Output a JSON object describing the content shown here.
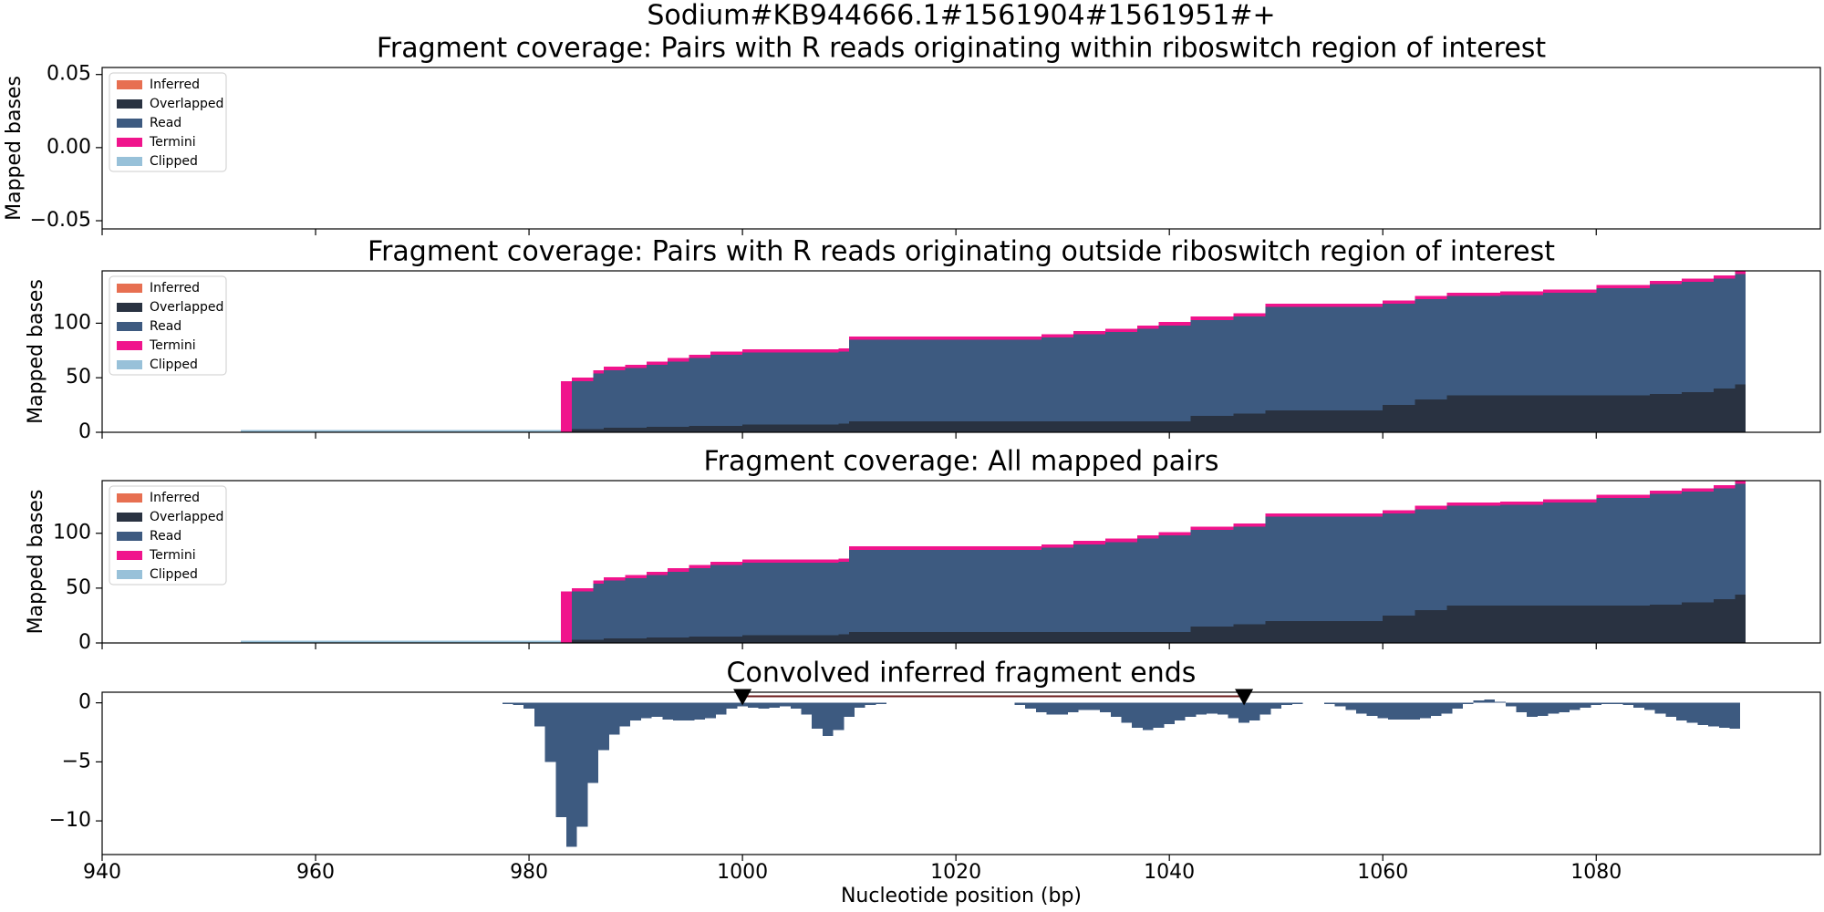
{
  "title": "Sodium#KB944666.1#1561904#1561951#+",
  "chart_data": [
    {
      "type": "stacked_step",
      "title": "Fragment coverage: Pairs with R reads originating within riboswitch region of interest",
      "ylabel": "Mapped bases",
      "legend": "upper left",
      "xlim": [
        940,
        1101
      ],
      "xticks": [
        940,
        960,
        980,
        1000,
        1020,
        1040,
        1060,
        1080
      ],
      "ylim": [
        -0.0556,
        0.0548
      ],
      "yticks": [
        {
          "value": -0.05,
          "label": "−0.05"
        },
        {
          "value": 0,
          "label": "0.00"
        },
        {
          "value": 0.05,
          "label": "0.05"
        }
      ],
      "x": [],
      "series": [
        {
          "name": "Inferred",
          "color": "#e76f51",
          "values": []
        },
        {
          "name": "Overlapped",
          "color": "#293241",
          "values": []
        },
        {
          "name": "Read",
          "color": "#3d5a80",
          "values": []
        },
        {
          "name": "Termini",
          "color": "#f0148c",
          "values": []
        },
        {
          "name": "Clipped",
          "color": "#98c1d9",
          "values": []
        }
      ]
    },
    {
      "type": "stacked_step",
      "title": "Fragment coverage: Pairs with R reads originating outside riboswitch region of interest",
      "ylabel": "Mapped bases",
      "legend": "upper left",
      "xlim": [
        940,
        1101
      ],
      "xticks": [
        940,
        960,
        980,
        1000,
        1020,
        1040,
        1060,
        1080
      ],
      "ylim": [
        0,
        148
      ],
      "yticks": [
        0,
        50,
        100
      ],
      "x": [
        953,
        983,
        984,
        986,
        987,
        989,
        991,
        993,
        995,
        997,
        1000,
        1009,
        1010,
        1028,
        1031,
        1034,
        1037,
        1039,
        1042,
        1046,
        1049,
        1060,
        1063,
        1066,
        1071,
        1075,
        1080,
        1085,
        1088,
        1091,
        1093,
        1094
      ],
      "series": [
        {
          "name": "Inferred",
          "color": "#e76f51",
          "values": [
            0,
            0,
            0,
            0,
            0,
            0,
            0,
            0,
            0,
            0,
            0,
            0,
            0,
            0,
            0,
            0,
            0,
            0,
            0,
            0,
            0,
            0,
            0,
            0,
            0,
            0,
            0,
            0,
            0,
            0,
            0,
            0
          ]
        },
        {
          "name": "Overlapped",
          "color": "#293241",
          "values": [
            0,
            0,
            3,
            3,
            4,
            4,
            5,
            5,
            6,
            6,
            7,
            8,
            10,
            10,
            10,
            10,
            10,
            10,
            15,
            17,
            20,
            25,
            30,
            34,
            34,
            34,
            34,
            35,
            37,
            40,
            44,
            0
          ]
        },
        {
          "name": "Read",
          "color": "#3d5a80",
          "values": [
            0,
            0,
            44,
            51,
            53,
            55,
            57,
            60,
            62,
            65,
            66,
            66,
            75,
            77,
            80,
            82,
            85,
            88,
            88,
            89,
            95,
            93,
            92,
            91,
            92,
            94,
            98,
            101,
            101,
            101,
            101,
            0
          ]
        },
        {
          "name": "Termini",
          "color": "#f0148c",
          "values": [
            0,
            47,
            3,
            3,
            3,
            3,
            3,
            3,
            3,
            3,
            3,
            3,
            3,
            3,
            3,
            3,
            3,
            3,
            3,
            3,
            3,
            3,
            3,
            3,
            3,
            3,
            3,
            3,
            3,
            3,
            3,
            0
          ]
        },
        {
          "name": "Clipped",
          "color": "#98c1d9",
          "values": [
            2,
            0,
            0,
            0,
            0,
            0,
            0,
            0,
            0,
            0,
            0,
            0,
            0,
            0,
            0,
            0,
            0,
            0,
            0,
            0,
            0,
            0,
            0,
            0,
            0,
            0,
            0,
            0,
            0,
            0,
            0,
            0
          ]
        }
      ]
    },
    {
      "type": "stacked_step",
      "title": "Fragment coverage: All mapped pairs",
      "ylabel": "Mapped bases",
      "legend": "upper left",
      "xlim": [
        940,
        1101
      ],
      "xticks": [
        940,
        960,
        980,
        1000,
        1020,
        1040,
        1060,
        1080
      ],
      "ylim": [
        0,
        148
      ],
      "yticks": [
        0,
        50,
        100
      ],
      "x": [
        953,
        983,
        984,
        986,
        987,
        989,
        991,
        993,
        995,
        997,
        1000,
        1009,
        1010,
        1028,
        1031,
        1034,
        1037,
        1039,
        1042,
        1046,
        1049,
        1060,
        1063,
        1066,
        1071,
        1075,
        1080,
        1085,
        1088,
        1091,
        1093,
        1094
      ],
      "series": [
        {
          "name": "Inferred",
          "color": "#e76f51",
          "values": [
            0,
            0,
            0,
            0,
            0,
            0,
            0,
            0,
            0,
            0,
            0,
            0,
            0,
            0,
            0,
            0,
            0,
            0,
            0,
            0,
            0,
            0,
            0,
            0,
            0,
            0,
            0,
            0,
            0,
            0,
            0,
            0
          ]
        },
        {
          "name": "Overlapped",
          "color": "#293241",
          "values": [
            0,
            0,
            3,
            3,
            4,
            4,
            5,
            5,
            6,
            6,
            7,
            8,
            10,
            10,
            10,
            10,
            10,
            10,
            15,
            17,
            20,
            25,
            30,
            34,
            34,
            34,
            34,
            35,
            37,
            40,
            44,
            0
          ]
        },
        {
          "name": "Read",
          "color": "#3d5a80",
          "values": [
            0,
            0,
            44,
            51,
            53,
            55,
            57,
            60,
            62,
            65,
            66,
            66,
            75,
            77,
            80,
            82,
            85,
            88,
            88,
            89,
            95,
            93,
            92,
            91,
            92,
            94,
            98,
            101,
            101,
            101,
            101,
            0
          ]
        },
        {
          "name": "Termini",
          "color": "#f0148c",
          "values": [
            0,
            47,
            3,
            3,
            3,
            3,
            3,
            3,
            3,
            3,
            3,
            3,
            3,
            3,
            3,
            3,
            3,
            3,
            3,
            3,
            3,
            3,
            3,
            3,
            3,
            3,
            3,
            3,
            3,
            3,
            3,
            0
          ]
        },
        {
          "name": "Clipped",
          "color": "#98c1d9",
          "values": [
            2,
            0,
            0,
            0,
            0,
            0,
            0,
            0,
            0,
            0,
            0,
            0,
            0,
            0,
            0,
            0,
            0,
            0,
            0,
            0,
            0,
            0,
            0,
            0,
            0,
            0,
            0,
            0,
            0,
            0,
            0,
            0
          ]
        }
      ]
    },
    {
      "type": "bar",
      "title": "Convolved inferred fragment ends",
      "xlabel": "Nucleotide position (bp)",
      "color": "#3d5a80",
      "xlim": [
        940,
        1101
      ],
      "xticks": [
        940,
        960,
        980,
        1000,
        1020,
        1040,
        1060,
        1080
      ],
      "ylim": [
        -12.85,
        0.9
      ],
      "yticks": [
        0,
        {
          "value": -5,
          "label": "−5"
        },
        {
          "value": -10,
          "label": "−10"
        }
      ],
      "x": [
        978,
        979,
        980,
        981,
        982,
        983,
        984,
        985,
        986,
        987,
        988,
        989,
        990,
        991,
        992,
        993,
        994,
        995,
        996,
        997,
        998,
        999,
        1000,
        1001,
        1002,
        1003,
        1004,
        1005,
        1006,
        1007,
        1008,
        1009,
        1010,
        1011,
        1012,
        1013,
        1014,
        1015,
        1016,
        1017,
        1018,
        1019,
        1020,
        1021,
        1022,
        1023,
        1024,
        1025,
        1026,
        1027,
        1028,
        1029,
        1030,
        1031,
        1032,
        1033,
        1034,
        1035,
        1036,
        1037,
        1038,
        1039,
        1040,
        1041,
        1042,
        1043,
        1044,
        1045,
        1046,
        1047,
        1048,
        1049,
        1050,
        1051,
        1052,
        1053,
        1054,
        1055,
        1056,
        1057,
        1058,
        1059,
        1060,
        1061,
        1062,
        1063,
        1064,
        1065,
        1066,
        1067,
        1068,
        1069,
        1070,
        1071,
        1072,
        1073,
        1074,
        1075,
        1076,
        1077,
        1078,
        1079,
        1080,
        1081,
        1082,
        1083,
        1084,
        1085,
        1086,
        1087,
        1088,
        1089,
        1090,
        1091,
        1092,
        1093
      ],
      "values": [
        -0.1,
        -0.2,
        -0.5,
        -2,
        -5,
        -9.7,
        -12.2,
        -10.5,
        -6.8,
        -4,
        -2.7,
        -2,
        -1.5,
        -1.3,
        -1.2,
        -1.4,
        -1.5,
        -1.5,
        -1.4,
        -1.3,
        -1,
        -0.5,
        -0.3,
        -0.4,
        -0.5,
        -0.4,
        -0.3,
        -0.5,
        -1,
        -2.2,
        -2.8,
        -2.3,
        -1.2,
        -0.4,
        -0.2,
        -0.1,
        0,
        0,
        0,
        0,
        0,
        0,
        0,
        0,
        0,
        0,
        0,
        0,
        -0.2,
        -0.5,
        -0.8,
        -1,
        -1,
        -0.8,
        -0.6,
        -0.6,
        -0.8,
        -1.2,
        -1.7,
        -2.1,
        -2.3,
        -2.1,
        -1.8,
        -1.5,
        -1.2,
        -1,
        -0.9,
        -1,
        -1.3,
        -1.7,
        -1.5,
        -1,
        -0.5,
        -0.2,
        -0.1,
        0,
        0,
        -0.1,
        -0.3,
        -0.6,
        -0.9,
        -1.1,
        -1.3,
        -1.4,
        -1.4,
        -1.4,
        -1.3,
        -1.1,
        -0.9,
        -0.5,
        -0.1,
        0.2,
        0.3,
        0.1,
        -0.3,
        -0.8,
        -1.2,
        -1.1,
        -0.9,
        -0.8,
        -0.6,
        -0.4,
        -0.2,
        -0.1,
        -0.1,
        -0.2,
        -0.4,
        -0.6,
        -0.9,
        -1.2,
        -1.5,
        -1.7,
        -1.9,
        -2,
        -2.1,
        -2.2
      ],
      "markers": {
        "x": [
          1000,
          1047
        ],
        "y": [
          0.55,
          0.55
        ],
        "color": "#000000",
        "line_color": "#6b1b1b"
      }
    }
  ]
}
